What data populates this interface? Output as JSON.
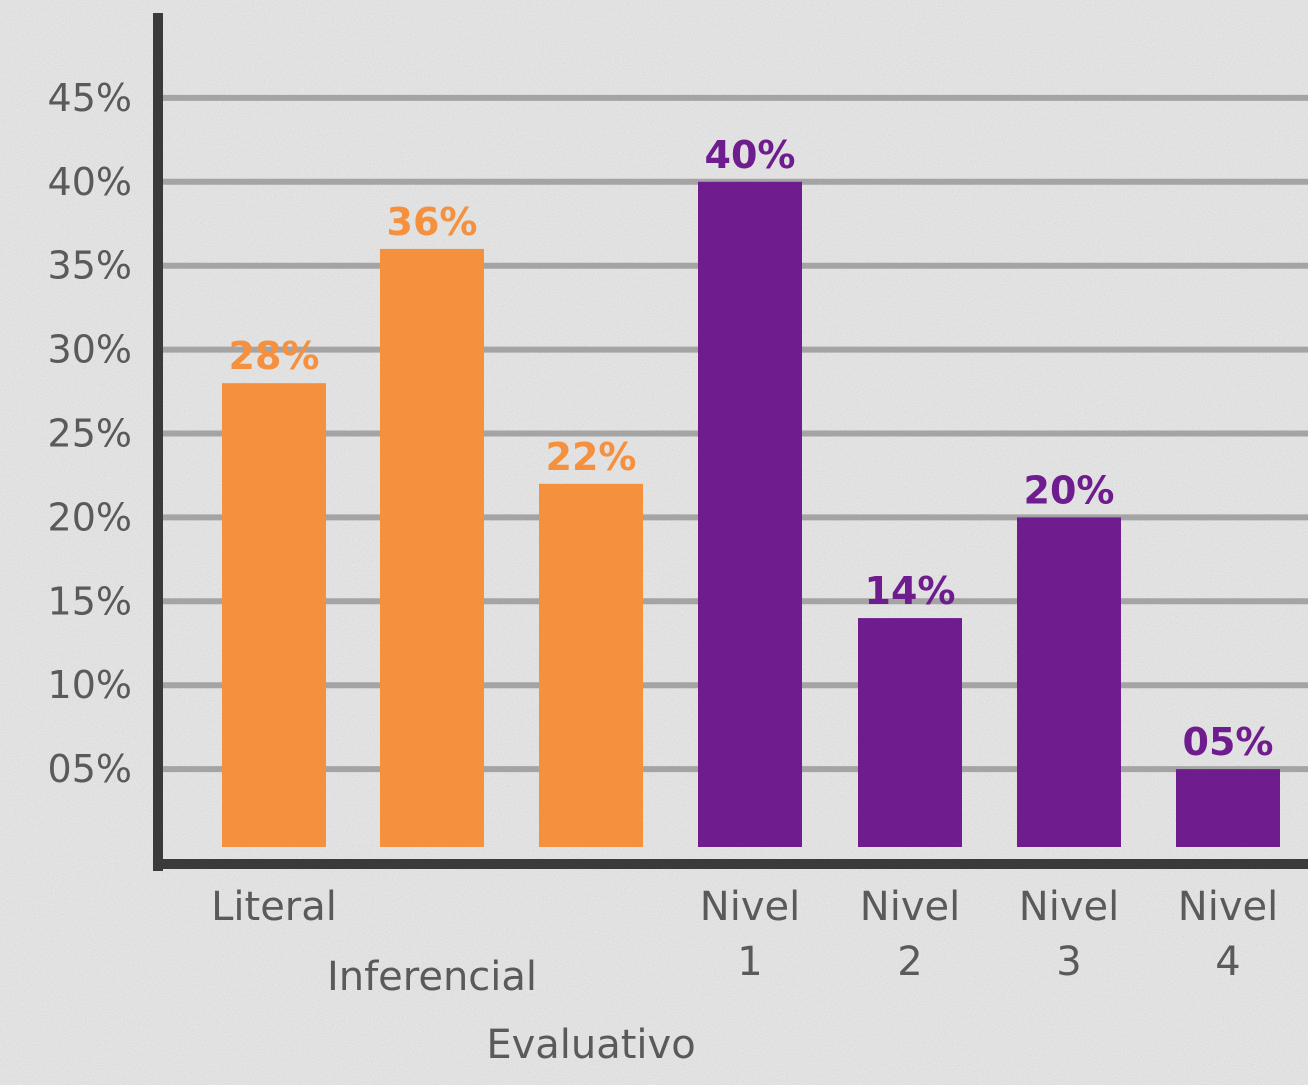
{
  "chart_data": {
    "type": "bar",
    "title": "",
    "xlabel": "",
    "ylabel": "",
    "ylim": [
      0,
      45
    ],
    "yticks": [
      "05%",
      "10%",
      "15%",
      "20%",
      "25%",
      "30%",
      "35%",
      "40%",
      "45%"
    ],
    "ytick_values": [
      5,
      10,
      15,
      20,
      25,
      30,
      35,
      40,
      45
    ],
    "grid": true,
    "bars": [
      {
        "category": [
          "Literal"
        ],
        "value": 28,
        "label": "28%",
        "color": "#f5913e"
      },
      {
        "category": [
          "Inferencial"
        ],
        "value": 36,
        "label": "36%",
        "color": "#f5913e"
      },
      {
        "category": [
          "Evaluativo"
        ],
        "value": 22,
        "label": "22%",
        "color": "#f5913e"
      },
      {
        "category": [
          "Nivel",
          "1"
        ],
        "value": 40,
        "label": "40%",
        "color": "#6f1d8e"
      },
      {
        "category": [
          "Nivel",
          "2"
        ],
        "value": 14,
        "label": "14%",
        "color": "#6f1d8e"
      },
      {
        "category": [
          "Nivel",
          "3"
        ],
        "value": 20,
        "label": "20%",
        "color": "#6f1d8e"
      },
      {
        "category": [
          "Nivel",
          "4"
        ],
        "value": 5,
        "label": "05%",
        "color": "#6f1d8e"
      }
    ]
  }
}
